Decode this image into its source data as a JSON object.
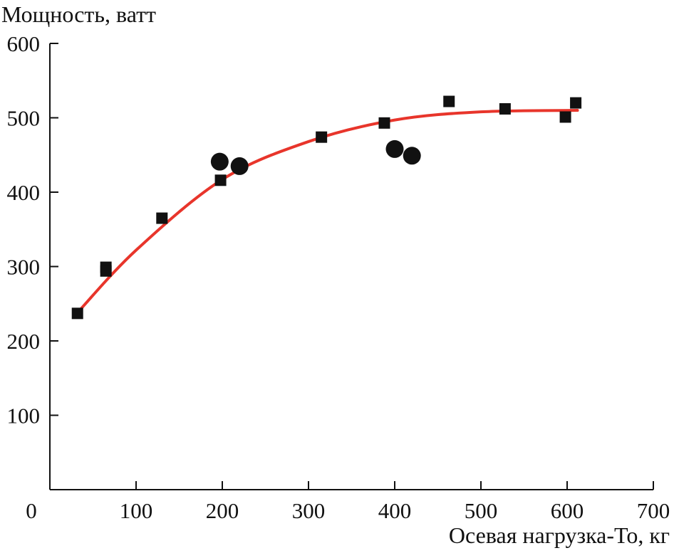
{
  "chart_data": {
    "type": "scatter",
    "ylabel": "Мощность, ватт",
    "xlabel": "Осевая нагрузка-To, кг",
    "xlim": [
      0,
      700
    ],
    "ylim": [
      0,
      600
    ],
    "x_ticks": [
      0,
      100,
      200,
      300,
      400,
      500,
      600,
      700
    ],
    "y_ticks": [
      100,
      200,
      300,
      400,
      500,
      600
    ],
    "x_tick_labels": [
      "0",
      "100",
      "200",
      "300",
      "400",
      "500",
      "600",
      "700"
    ],
    "y_tick_labels": [
      "100",
      "200",
      "300",
      "400",
      "500",
      "600"
    ],
    "grid": false,
    "series": [
      {
        "marker": "square",
        "color": "#111111",
        "points": [
          {
            "x": 32,
            "y": 237
          },
          {
            "x": 65,
            "y": 299
          },
          {
            "x": 65,
            "y": 294
          },
          {
            "x": 130,
            "y": 365
          },
          {
            "x": 198,
            "y": 416
          },
          {
            "x": 315,
            "y": 474
          },
          {
            "x": 388,
            "y": 493
          },
          {
            "x": 463,
            "y": 522
          },
          {
            "x": 528,
            "y": 512
          },
          {
            "x": 598,
            "y": 501
          },
          {
            "x": 610,
            "y": 520
          }
        ]
      },
      {
        "marker": "circle",
        "color": "#111111",
        "points": [
          {
            "x": 197,
            "y": 441
          },
          {
            "x": 220,
            "y": 435
          },
          {
            "x": 400,
            "y": 458
          },
          {
            "x": 420,
            "y": 449
          }
        ]
      },
      {
        "marker": "line",
        "color": "#e8352b",
        "points": [
          {
            "x": 32,
            "y": 238
          },
          {
            "x": 100,
            "y": 322
          },
          {
            "x": 200,
            "y": 417
          },
          {
            "x": 300,
            "y": 468
          },
          {
            "x": 400,
            "y": 497
          },
          {
            "x": 500,
            "y": 508
          },
          {
            "x": 612,
            "y": 510
          }
        ]
      }
    ]
  }
}
